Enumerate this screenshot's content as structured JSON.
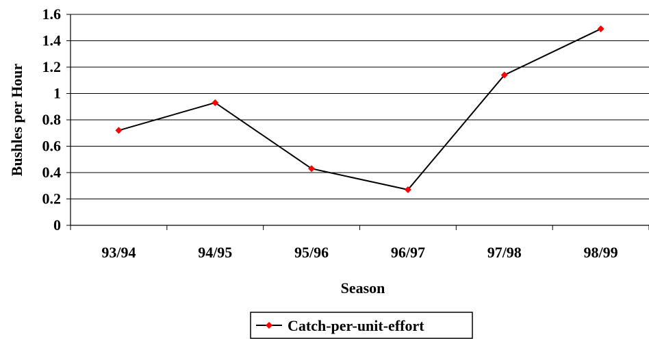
{
  "chart_data": {
    "type": "line",
    "categories": [
      "93/94",
      "94/95",
      "95/96",
      "96/97",
      "97/98",
      "98/99"
    ],
    "series": [
      {
        "name": "Catch-per-unit-effort",
        "values": [
          0.72,
          0.93,
          0.43,
          0.27,
          1.14,
          1.49
        ]
      }
    ],
    "xlabel": "Season",
    "ylabel": "Bushles per Hour",
    "ylim": [
      0,
      1.6
    ],
    "yticks": [
      0,
      0.2,
      0.4,
      0.6,
      0.8,
      1,
      1.2,
      1.4,
      1.6
    ],
    "ytick_labels": [
      "0",
      "0.2",
      "0.4",
      "0.6",
      "0.8",
      "1",
      "1.2",
      "1.4",
      "1.6"
    ],
    "grid": true,
    "legend_position": "bottom-center",
    "colors": {
      "line": "#000000",
      "marker": "#ff0000",
      "grid": "#000000",
      "background": "#ffffff"
    },
    "marker": "diamond"
  }
}
